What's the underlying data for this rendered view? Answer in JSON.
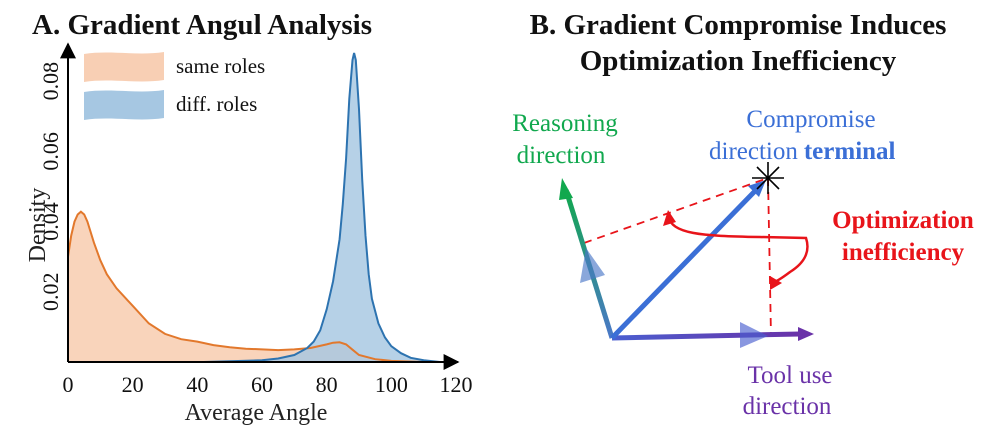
{
  "panel_a": {
    "title": "A. Gradient Angul Analysis",
    "chart_data": {
      "type": "area",
      "title": "A. Gradient Angul Analysis",
      "xlabel": "Average Angle",
      "ylabel": "Density",
      "xlim": [
        0,
        120
      ],
      "ylim": [
        0,
        0.09
      ],
      "x_ticks": [
        "0",
        "20",
        "40",
        "60",
        "80",
        "100",
        "120"
      ],
      "y_ticks": [
        "0.02",
        "0.04",
        "0.06",
        "0.08"
      ],
      "y_tick_values": [
        0.02,
        0.04,
        0.06,
        0.08
      ],
      "legend_position": "top-left",
      "grid": false,
      "series": [
        {
          "name": "same roles",
          "fill": "#f8cfb4",
          "stroke": "#e2782c",
          "points": [
            [
              0,
              0.03
            ],
            [
              1,
              0.036
            ],
            [
              2,
              0.04
            ],
            [
              3,
              0.042
            ],
            [
              4,
              0.0428
            ],
            [
              5,
              0.042
            ],
            [
              6,
              0.04
            ],
            [
              8,
              0.034
            ],
            [
              10,
              0.029
            ],
            [
              12,
              0.025
            ],
            [
              15,
              0.021
            ],
            [
              18,
              0.018
            ],
            [
              20,
              0.016
            ],
            [
              25,
              0.011
            ],
            [
              30,
              0.008
            ],
            [
              35,
              0.0065
            ],
            [
              40,
              0.0058
            ],
            [
              45,
              0.0048
            ],
            [
              50,
              0.0042
            ],
            [
              55,
              0.0038
            ],
            [
              60,
              0.0036
            ],
            [
              65,
              0.0034
            ],
            [
              70,
              0.0036
            ],
            [
              75,
              0.004
            ],
            [
              80,
              0.005
            ],
            [
              82,
              0.0055
            ],
            [
              84,
              0.0056
            ],
            [
              86,
              0.005
            ],
            [
              88,
              0.0035
            ],
            [
              90,
              0.002
            ],
            [
              95,
              0.0008
            ],
            [
              100,
              0.0003
            ],
            [
              110,
              0.0
            ],
            [
              115,
              0.0
            ]
          ]
        },
        {
          "name": "diff. roles",
          "fill": "#a6c7e2",
          "stroke": "#2d73b0",
          "points": [
            [
              42,
              0.0
            ],
            [
              50,
              0.0002
            ],
            [
              60,
              0.0005
            ],
            [
              65,
              0.001
            ],
            [
              70,
              0.002
            ],
            [
              74,
              0.004
            ],
            [
              76,
              0.0058
            ],
            [
              78,
              0.009
            ],
            [
              80,
              0.015
            ],
            [
              82,
              0.023
            ],
            [
              84,
              0.035
            ],
            [
              85,
              0.045
            ],
            [
              86,
              0.058
            ],
            [
              87,
              0.075
            ],
            [
              88,
              0.086
            ],
            [
              88.5,
              0.088
            ],
            [
              89,
              0.086
            ],
            [
              90,
              0.072
            ],
            [
              91,
              0.052
            ],
            [
              92,
              0.036
            ],
            [
              93,
              0.025
            ],
            [
              94,
              0.018
            ],
            [
              96,
              0.011
            ],
            [
              98,
              0.007
            ],
            [
              100,
              0.0045
            ],
            [
              103,
              0.0025
            ],
            [
              106,
              0.0012
            ],
            [
              110,
              0.0005
            ],
            [
              115,
              0.0
            ]
          ]
        }
      ]
    }
  },
  "panel_b": {
    "title_line1": "B. Gradient Compromise Induces",
    "title_line2": "Optimization Inefficiency",
    "reasoning_label_1": "Reasoning",
    "reasoning_label_2": "direction",
    "compromise_label_1": "Compromise",
    "compromise_label_2a": "direction",
    "compromise_label_2b": "terminal",
    "inefficiency_label_1": "Optimization",
    "inefficiency_label_2": "inefficiency",
    "tool_label_1": "Tool use",
    "tool_label_2": "direction",
    "colors": {
      "reasoning": "#11a84e",
      "compromise": "#3b6fd6",
      "tool": "#6a32a8",
      "inefficiency": "#e8141a"
    },
    "icons": {
      "terminal_marker": "star-burst-icon"
    }
  }
}
